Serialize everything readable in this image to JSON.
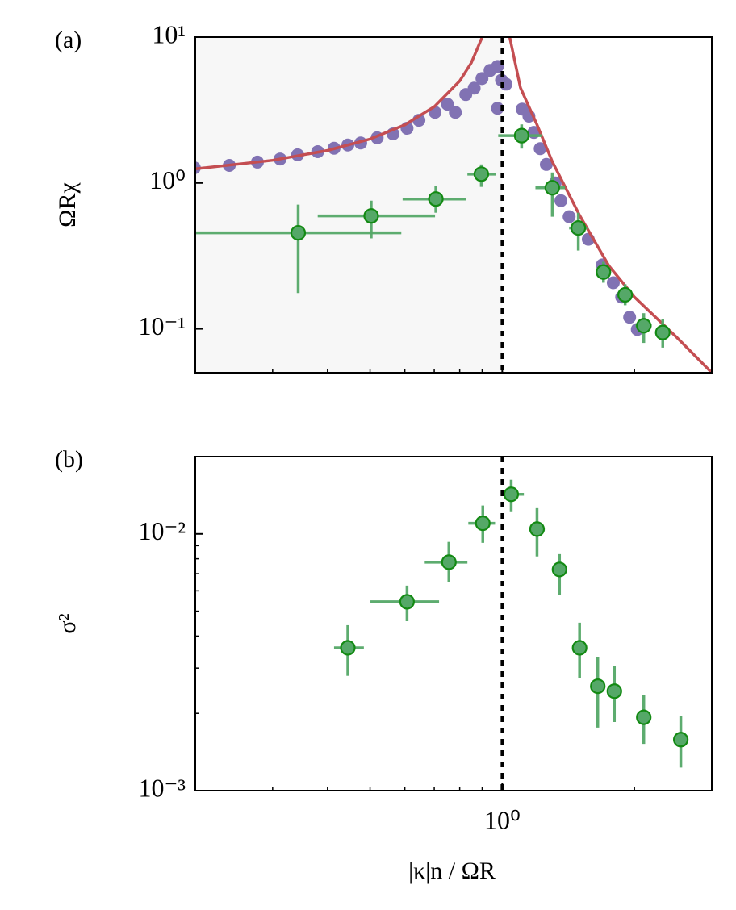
{
  "chart_data": [
    {
      "type": "scatter",
      "panel_label": "(a)",
      "ylabel": "ΩRχ",
      "xscale": "log",
      "yscale": "log",
      "xlim": [
        0.2,
        3
      ],
      "ylim": [
        0.05,
        10
      ],
      "xticks": [
        1
      ],
      "show_xticklabels": false,
      "xminor": [
        0.3,
        0.4,
        0.5,
        0.6,
        0.7,
        0.8,
        0.9,
        2
      ],
      "yticks": [
        {
          "value": 0.1,
          "label": "10⁻¹"
        },
        {
          "value": 1,
          "label": "10⁰"
        },
        {
          "value": 10,
          "label": "10¹"
        }
      ],
      "shade": [
        0.2,
        1
      ],
      "shade_color": "#f7f7f7",
      "vline": 1,
      "series": [
        {
          "type": "scatter",
          "color": "#8172b3",
          "x": [
            0.199,
            0.239,
            0.277,
            0.312,
            0.342,
            0.38,
            0.414,
            0.445,
            0.476,
            0.519,
            0.564,
            0.607,
            0.646,
            0.703,
            0.75,
            0.782,
            0.826,
            0.863,
            0.899,
            0.938,
            0.975,
            0.975,
            0.996,
            1.02,
            1.11,
            1.15,
            1.18,
            1.22,
            1.26,
            1.32,
            1.36,
            1.42,
            1.48,
            1.57,
            1.69,
            1.79,
            1.87,
            1.95,
            2.03
          ],
          "values": [
            1.27,
            1.32,
            1.39,
            1.46,
            1.56,
            1.64,
            1.73,
            1.82,
            1.88,
            2.04,
            2.17,
            2.37,
            2.69,
            3.05,
            3.47,
            3.05,
            4.04,
            4.47,
            5.2,
            5.91,
            6.29,
            3.25,
            5.07,
            4.76,
            3.21,
            2.87,
            2.22,
            1.72,
            1.34,
            1.0,
            0.756,
            0.587,
            0.485,
            0.411,
            0.274,
            0.207,
            0.165,
            0.12,
            0.099
          ]
        },
        {
          "type": "line",
          "color": "#c44e52",
          "x": [
            0.2,
            0.3,
            0.4,
            0.5,
            0.6,
            0.7,
            0.8,
            0.85,
            0.9,
            1,
            1.04,
            1.1,
            1.2,
            1.3,
            1.5,
            1.75,
            2,
            2.5,
            3
          ],
          "values": [
            1.25,
            1.43,
            1.67,
            2,
            2.5,
            3.33,
            5,
            6.67,
            10,
            null,
            10,
            4.5,
            2.5,
            1.4,
            0.6,
            0.27,
            0.165,
            0.087,
            0.05
          ]
        },
        {
          "type": "errorbar",
          "color": "#55a868",
          "edgecolor": "#138a13",
          "x": [
            0.343,
            0.503,
            0.706,
            0.896,
            1.107,
            1.3,
            1.49,
            1.7,
            1.905,
            2.1,
            2.32
          ],
          "x_lower": [
            0.199,
            0.38,
            0.593,
            0.833,
            0.979,
            1.19,
            1.42,
            1.64,
            1.83,
            2.01,
            2.23
          ],
          "x_upper": [
            0.589,
            0.703,
            0.826,
            0.967,
            1.23,
            1.39,
            1.56,
            1.76,
            1.98,
            2.19,
            2.4
          ],
          "values": [
            0.455,
            0.594,
            0.776,
            1.15,
            2.11,
            0.927,
            0.491,
            0.245,
            0.171,
            0.105,
            0.0944
          ],
          "y_lower": [
            0.176,
            0.417,
            0.625,
            0.94,
            1.72,
            0.587,
            0.344,
            0.207,
            0.145,
            0.08,
            0.0743
          ],
          "y_upper": [
            0.71,
            0.756,
            0.951,
            1.34,
            2.52,
            1.18,
            0.625,
            0.288,
            0.202,
            0.128,
            0.116
          ]
        }
      ]
    },
    {
      "type": "scatter",
      "panel_label": "(b)",
      "ylabel": "σ²",
      "xlabel": "|κ|n / ΩR",
      "xscale": "log",
      "yscale": "log",
      "xlim": [
        0.2,
        3
      ],
      "ylim": [
        0.001,
        0.02
      ],
      "xticks": [
        {
          "value": 1,
          "label": "10⁰"
        }
      ],
      "show_xticklabels": true,
      "xminor": [
        0.3,
        0.4,
        0.5,
        0.6,
        0.7,
        0.8,
        0.9,
        2
      ],
      "yticks": [
        {
          "value": 0.001,
          "label": "10⁻³"
        },
        {
          "value": 0.01,
          "label": "10⁻²"
        }
      ],
      "yminor": [
        0.002,
        0.003,
        0.004,
        0.005,
        0.006,
        0.007,
        0.008,
        0.009
      ],
      "vline": 1,
      "series": [
        {
          "type": "errorbar",
          "color": "#55a868",
          "edgecolor": "#138a13",
          "x": [
            0.445,
            0.607,
            0.756,
            0.903,
            1.048,
            1.2,
            1.35,
            1.5,
            1.65,
            1.8,
            2.1,
            2.55
          ],
          "x_lower": [
            0.414,
            0.501,
            0.666,
            0.837,
            0.996,
            1.16,
            1.32,
            1.46,
            1.61,
            1.76,
            2.03,
            2.47
          ],
          "x_upper": [
            0.484,
            0.718,
            0.833,
            0.963,
            1.12,
            1.25,
            1.39,
            1.53,
            1.69,
            1.85,
            2.17,
            2.64
          ],
          "values": [
            0.0036,
            0.00544,
            0.00776,
            0.011,
            0.01426,
            0.01044,
            0.00727,
            0.0036,
            0.00255,
            0.00244,
            0.00193,
            0.00158
          ],
          "y_lower": [
            0.0028,
            0.00457,
            0.00648,
            0.00923,
            0.01216,
            0.00817,
            0.00577,
            0.00275,
            0.00176,
            0.00185,
            0.00152,
            0.00123
          ],
          "y_upper": [
            0.00441,
            0.00629,
            0.00931,
            0.0129,
            0.01625,
            0.0126,
            0.00834,
            0.00451,
            0.0033,
            0.00305,
            0.00235,
            0.00195
          ]
        }
      ]
    }
  ]
}
